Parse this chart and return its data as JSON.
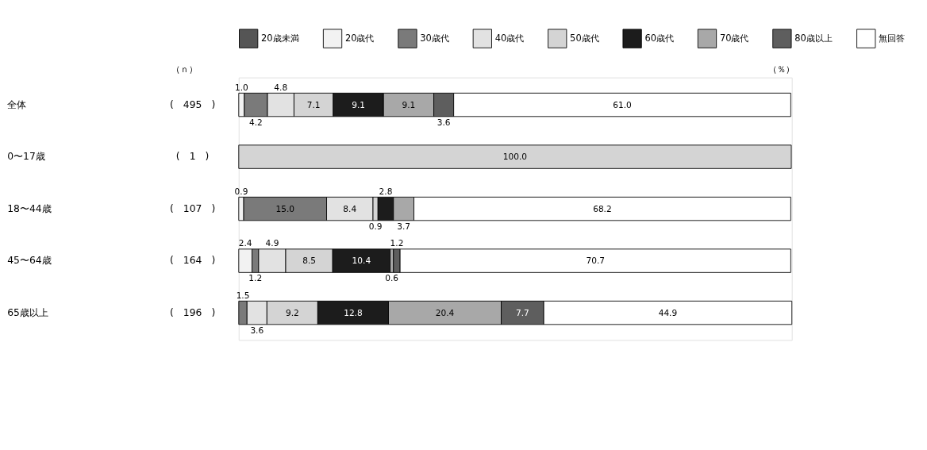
{
  "chart_data": {
    "type": "bar",
    "orientation": "horizontal",
    "stacked": true,
    "legend": "top",
    "categories": [
      "全体",
      "0〜17歳",
      "18〜44歳",
      "45〜64歳",
      "65歳以上"
    ],
    "series": [
      {
        "name": "20歳未満",
        "color": "#555555",
        "values": [
          null,
          null,
          null,
          null,
          null
        ],
        "value_labels": [
          null,
          null,
          null,
          null,
          null
        ]
      },
      {
        "name": "20歳代",
        "color": "#f2f2f2",
        "values": [
          1.0,
          null,
          0.9,
          2.4,
          null
        ],
        "value_labels": [
          "1.0",
          null,
          "0.9",
          "2.4",
          null
        ]
      },
      {
        "name": "30歳代",
        "color": "#7a7a7a",
        "values": [
          4.2,
          null,
          15.0,
          1.2,
          1.5
        ],
        "value_labels": [
          "4.2",
          null,
          "15.0",
          "1.2",
          "1.5"
        ]
      },
      {
        "name": "40歳代",
        "color": "#e2e2e2",
        "values": [
          4.8,
          null,
          8.4,
          4.9,
          3.6
        ],
        "value_labels": [
          "4.8",
          null,
          "8.4",
          "4.9",
          "3.6"
        ]
      },
      {
        "name": "50歳代",
        "color": "#d4d4d4",
        "values": [
          7.1,
          100.0,
          0.9,
          8.5,
          9.2
        ],
        "value_labels": [
          "7.1",
          "100.0",
          "0.9",
          "8.5",
          "9.2"
        ]
      },
      {
        "name": "60歳代",
        "color": "#1c1c1c",
        "values": [
          9.1,
          null,
          2.8,
          10.4,
          12.8
        ],
        "value_labels": [
          "9.1",
          null,
          "2.8",
          "10.4",
          "12.8"
        ]
      },
      {
        "name": "70歳代",
        "color": "#a8a8a8",
        "values": [
          9.1,
          null,
          3.7,
          0.6,
          20.4
        ],
        "value_labels": [
          "9.1",
          null,
          "3.7",
          "0.6",
          "20.4"
        ]
      },
      {
        "name": "80歳以上",
        "color": "#5e5e5e",
        "values": [
          3.6,
          null,
          null,
          1.2,
          7.7
        ],
        "value_labels": [
          "3.6",
          null,
          null,
          "1.2",
          "7.7"
        ]
      },
      {
        "name": "無回答",
        "color": "#ffffff",
        "values": [
          61.0,
          null,
          68.2,
          70.7,
          44.9
        ],
        "value_labels": [
          "61.0",
          null,
          "68.2",
          "70.7",
          "44.9"
        ]
      }
    ],
    "annotations": [
      "（ｎ）",
      "（％）",
      "(　495　)",
      "(　1　)",
      "(　107　)",
      "(　164　)",
      "(　196　)"
    ]
  }
}
